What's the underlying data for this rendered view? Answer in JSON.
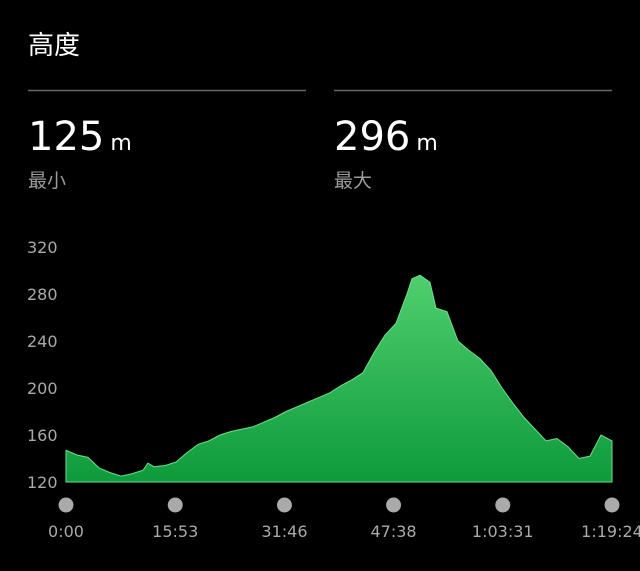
{
  "header": {
    "title": "高度"
  },
  "stats": [
    {
      "value": 125,
      "unit": "m",
      "label": "最小"
    },
    {
      "value": 296,
      "unit": "m",
      "label": "最大"
    }
  ],
  "chart_data": {
    "type": "area",
    "x": [
      0,
      96,
      192,
      288,
      384,
      480,
      576,
      672,
      715,
      768,
      864,
      960,
      1056,
      1152,
      1248,
      1344,
      1440,
      1536,
      1632,
      1728,
      1824,
      1920,
      2016,
      2112,
      2208,
      2304,
      2399,
      2495,
      2591,
      2687,
      2783,
      2879,
      2975,
      3019,
      3089,
      3176,
      3228,
      3324,
      3420,
      3516,
      3612,
      3708,
      3804,
      3900,
      3996,
      4092,
      4188,
      4284,
      4380,
      4476,
      4572,
      4668,
      4764
    ],
    "values": [
      147,
      143,
      141,
      132,
      128,
      125,
      127,
      130,
      136,
      133,
      134,
      137,
      145,
      152,
      155,
      160,
      163,
      165,
      167,
      171,
      175,
      180,
      184,
      188,
      192,
      196,
      202,
      207,
      213,
      230,
      245,
      255,
      280,
      293,
      296,
      290,
      268,
      265,
      240,
      232,
      225,
      215,
      200,
      187,
      175,
      165,
      155,
      157,
      150,
      140,
      142,
      160,
      155
    ],
    "colors": [
      "#4fcf6e",
      "#0e9a3c"
    ],
    "xlim": [
      0,
      4764
    ],
    "xticks": [
      {
        "value": 0,
        "label": "0:00"
      },
      {
        "value": 953,
        "label": "15:53"
      },
      {
        "value": 1906,
        "label": "31:46"
      },
      {
        "value": 2858,
        "label": "47:38"
      },
      {
        "value": 3811,
        "label": "1:03:31"
      },
      {
        "value": 4764,
        "label": "1:19:24"
      }
    ],
    "ylim": [
      120,
      320
    ],
    "yticks": [
      120,
      160,
      200,
      240,
      280,
      320
    ]
  }
}
